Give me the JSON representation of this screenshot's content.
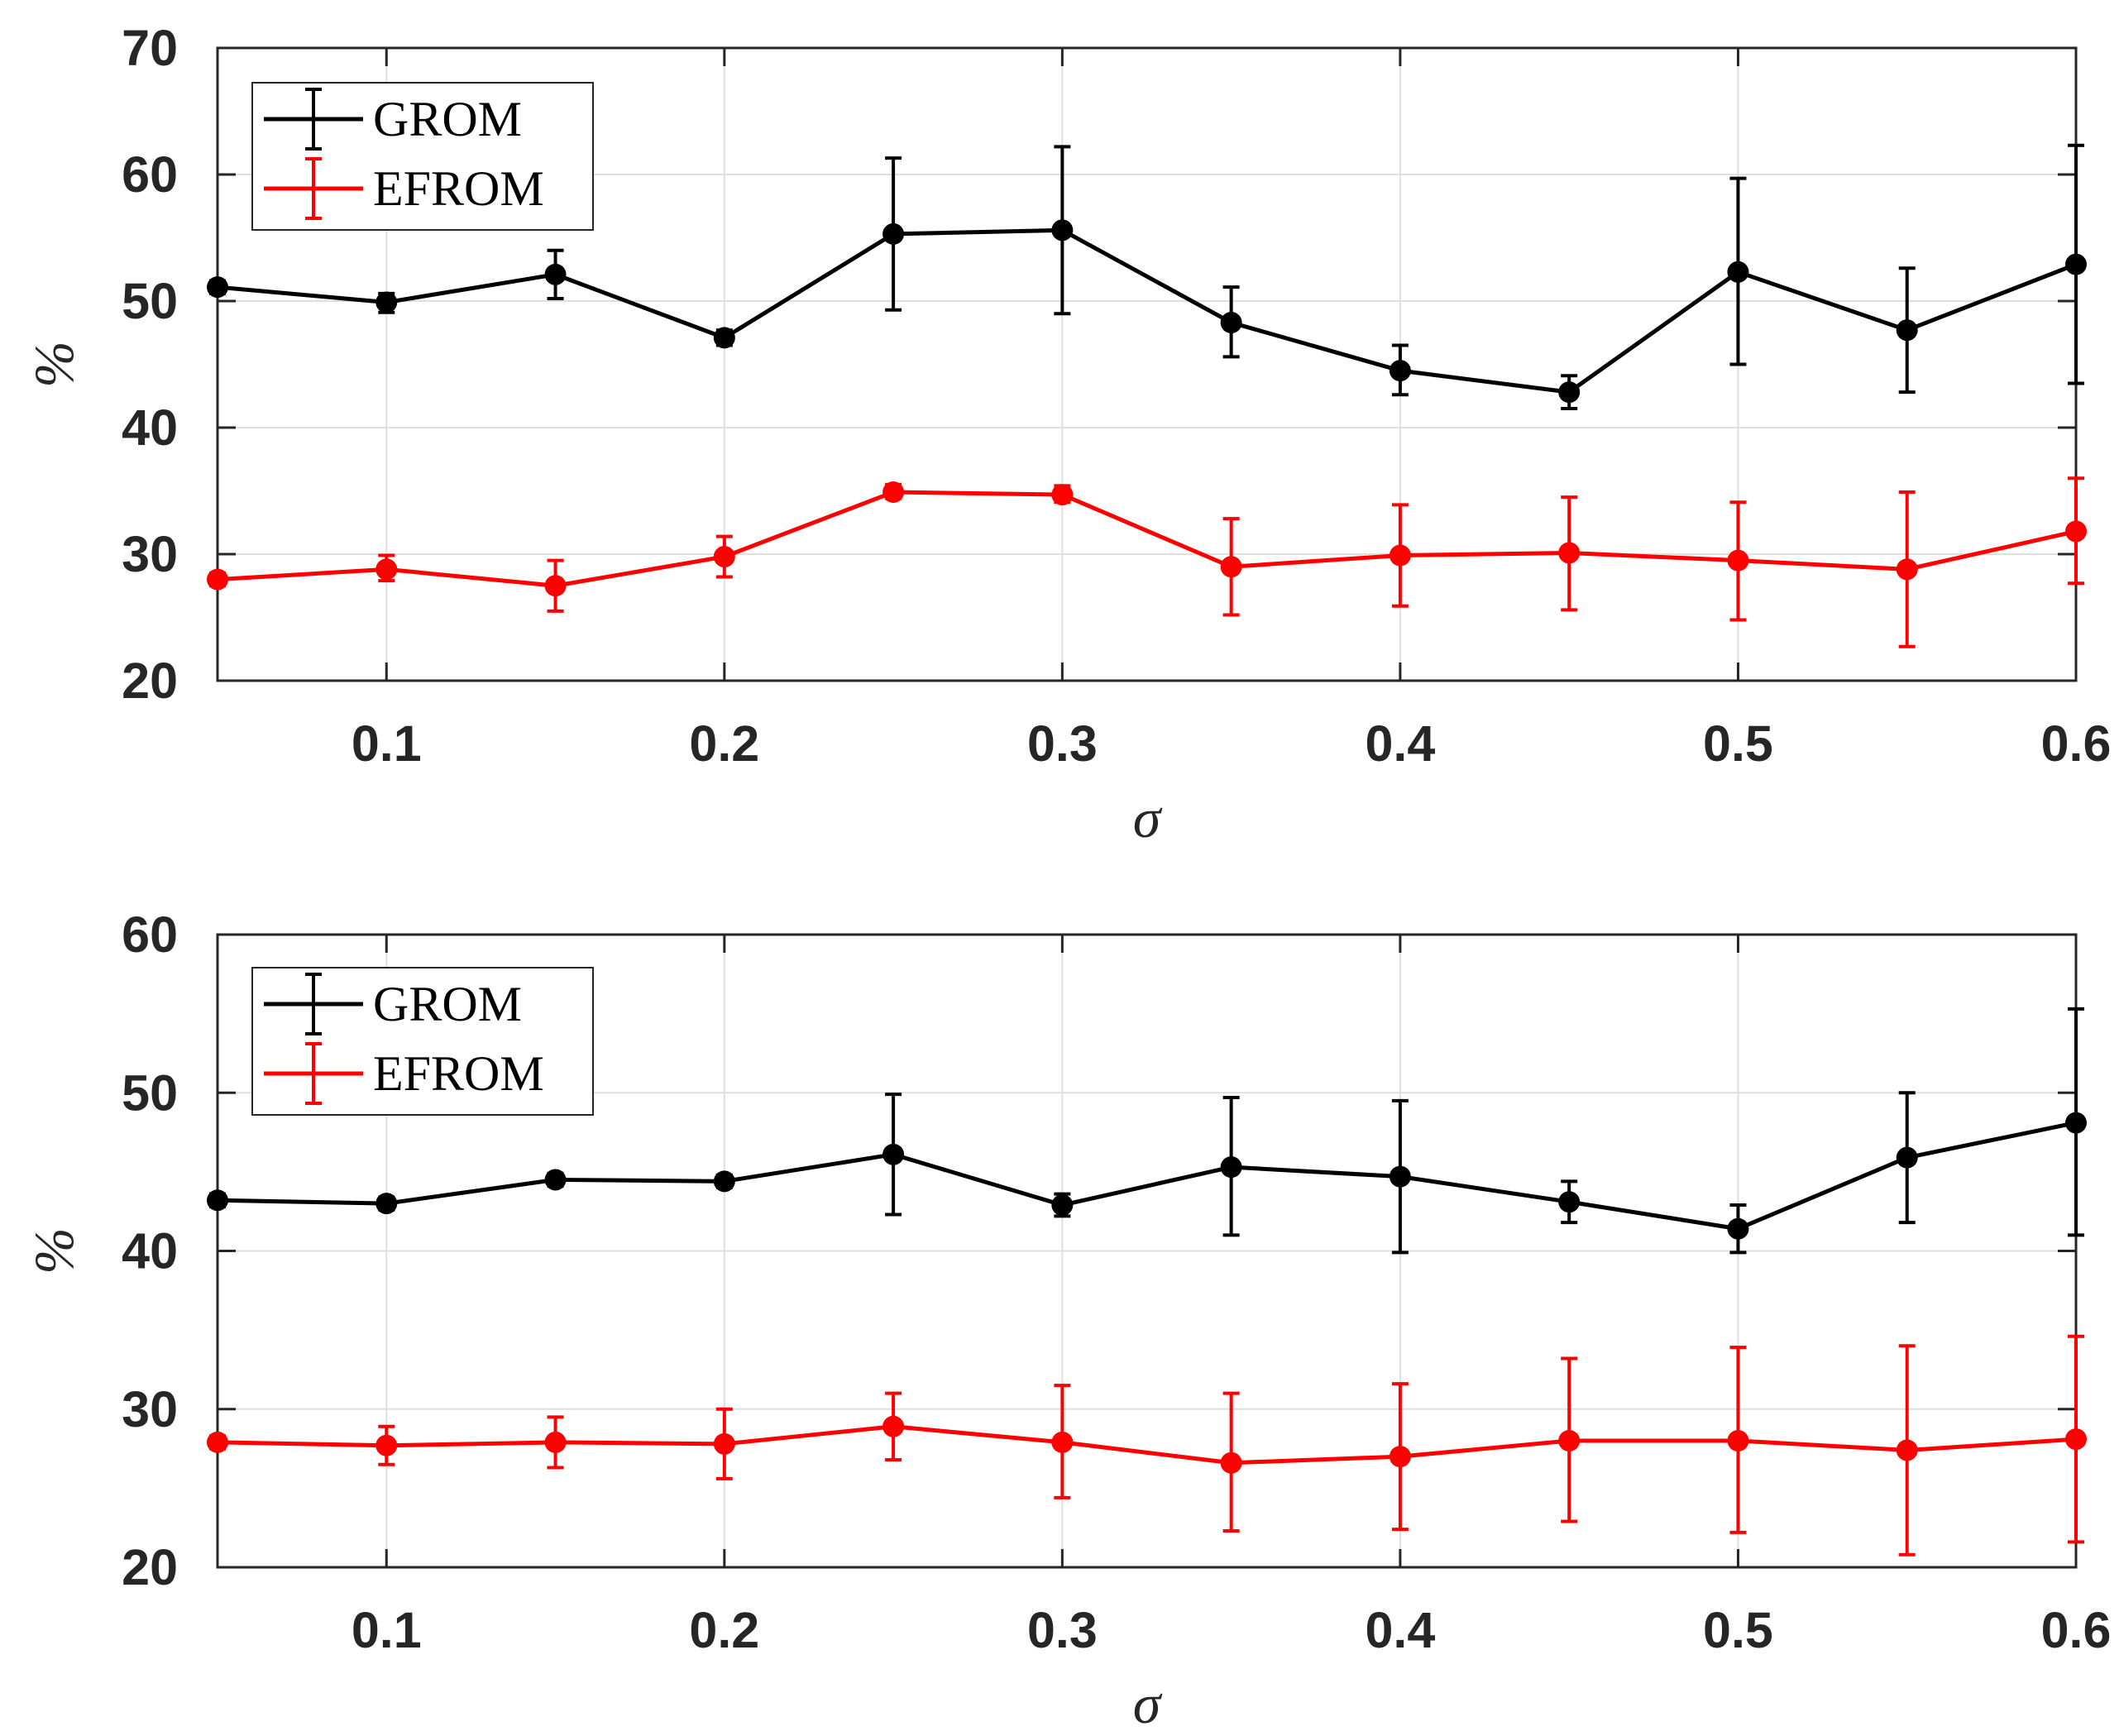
{
  "chart_data": [
    {
      "type": "line",
      "title": "",
      "xlabel": "σ",
      "ylabel": "%",
      "xlim": [
        0.05,
        0.6
      ],
      "ylim": [
        20,
        70
      ],
      "xticks": [
        0.1,
        0.2,
        0.3,
        0.4,
        0.5,
        0.6
      ],
      "xtick_labels": [
        "0.1",
        "0.2",
        "0.3",
        "0.4",
        "0.5",
        "0.6"
      ],
      "yticks": [
        20,
        30,
        40,
        50,
        60,
        70
      ],
      "ytick_labels": [
        "20",
        "30",
        "40",
        "50",
        "60",
        "70"
      ],
      "grid": true,
      "legend_position": "top-left",
      "x": [
        0.05,
        0.1,
        0.15,
        0.2,
        0.25,
        0.3,
        0.35,
        0.4,
        0.45,
        0.5,
        0.55,
        0.6
      ],
      "series": [
        {
          "name": "GROM",
          "color": "#000000",
          "values": [
            51.1,
            49.9,
            52.1,
            47.1,
            55.3,
            55.6,
            48.3,
            44.5,
            42.8,
            52.3,
            47.7,
            52.9
          ],
          "lower": [
            50.6,
            49.1,
            50.2,
            46.5,
            49.3,
            49.0,
            45.6,
            42.6,
            41.5,
            45.0,
            42.8,
            43.5
          ],
          "upper": [
            51.6,
            50.6,
            54.0,
            47.7,
            61.3,
            62.2,
            51.1,
            46.5,
            44.1,
            59.7,
            52.6,
            62.3
          ]
        },
        {
          "name": "EFROM",
          "color": "#ff0000",
          "values": [
            28.0,
            28.8,
            27.5,
            29.8,
            34.9,
            34.7,
            29.0,
            29.9,
            30.1,
            29.5,
            28.8,
            31.8
          ],
          "lower": [
            27.5,
            27.9,
            25.5,
            28.2,
            34.4,
            34.1,
            25.2,
            25.9,
            25.6,
            24.8,
            22.7,
            27.7
          ],
          "upper": [
            28.5,
            29.9,
            29.5,
            31.4,
            35.5,
            35.4,
            32.8,
            33.9,
            34.5,
            34.1,
            34.9,
            36.0
          ]
        }
      ]
    },
    {
      "type": "line",
      "title": "",
      "xlabel": "σ",
      "ylabel": "%",
      "xlim": [
        0.05,
        0.6
      ],
      "ylim": [
        20,
        60
      ],
      "xticks": [
        0.1,
        0.2,
        0.3,
        0.4,
        0.5,
        0.6
      ],
      "xtick_labels": [
        "0.1",
        "0.2",
        "0.3",
        "0.4",
        "0.5",
        "0.6"
      ],
      "yticks": [
        20,
        30,
        40,
        50,
        60
      ],
      "ytick_labels": [
        "20",
        "30",
        "40",
        "50",
        "60"
      ],
      "grid": true,
      "legend_position": "top-left",
      "x": [
        0.05,
        0.1,
        0.15,
        0.2,
        0.25,
        0.3,
        0.35,
        0.4,
        0.45,
        0.5,
        0.55,
        0.6
      ],
      "series": [
        {
          "name": "GROM",
          "color": "#000000",
          "values": [
            43.2,
            43.0,
            44.5,
            44.4,
            46.1,
            42.9,
            45.3,
            44.7,
            43.1,
            41.4,
            45.9,
            48.1
          ],
          "lower": [
            42.8,
            42.6,
            44.1,
            44.0,
            42.3,
            42.2,
            41.0,
            39.9,
            41.8,
            39.9,
            41.8,
            41.0
          ],
          "upper": [
            43.6,
            43.4,
            44.9,
            44.8,
            49.9,
            43.6,
            49.7,
            49.5,
            44.4,
            42.9,
            50.0,
            55.3
          ]
        },
        {
          "name": "EFROM",
          "color": "#ff0000",
          "values": [
            27.9,
            27.7,
            27.9,
            27.8,
            28.9,
            27.9,
            26.6,
            27.0,
            28.0,
            28.0,
            27.4,
            28.1
          ],
          "lower": [
            27.5,
            26.5,
            26.3,
            25.6,
            26.8,
            24.4,
            22.3,
            22.4,
            22.9,
            22.2,
            20.8,
            21.6
          ],
          "upper": [
            28.3,
            28.9,
            29.5,
            30.0,
            31.0,
            31.5,
            31.0,
            31.6,
            33.2,
            33.9,
            34.0,
            34.6
          ]
        }
      ]
    }
  ]
}
